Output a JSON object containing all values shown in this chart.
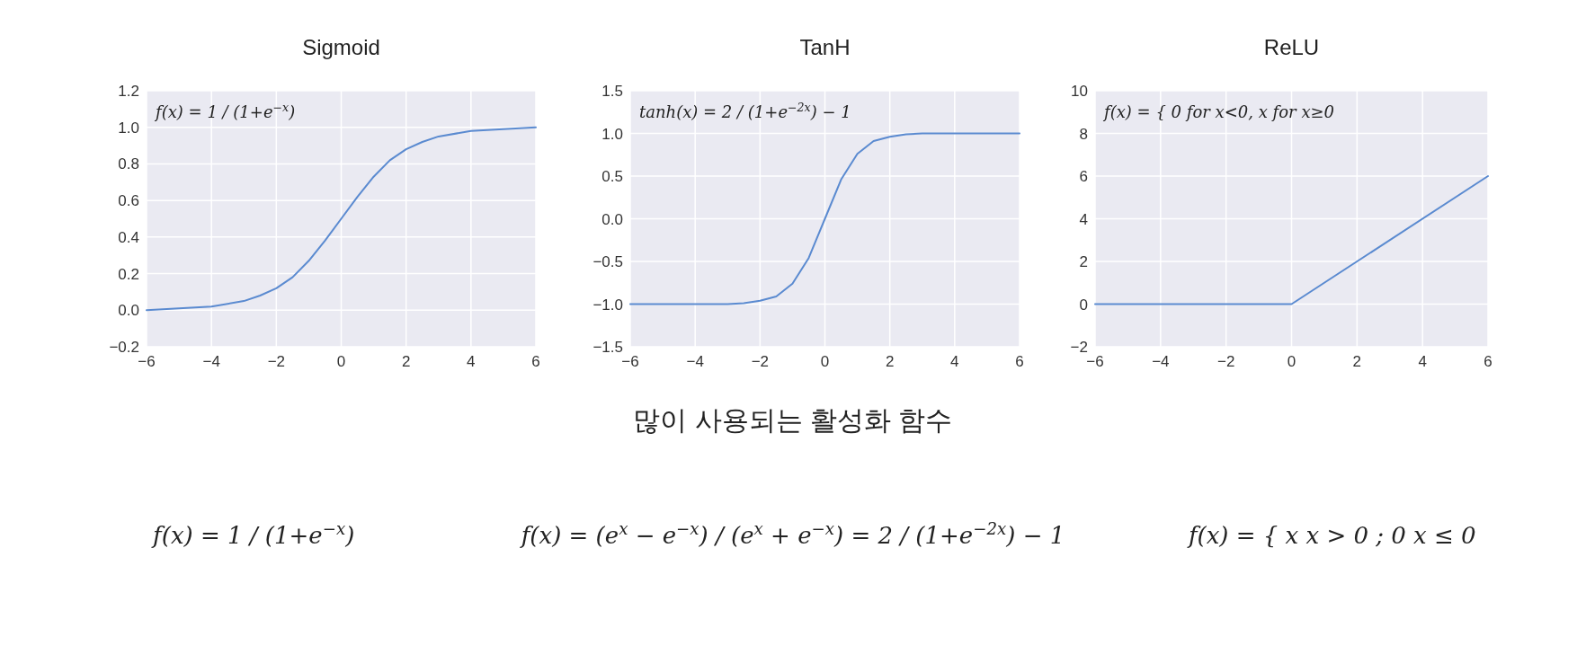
{
  "chart_data": [
    {
      "type": "line",
      "title": "Sigmoid",
      "grid": true,
      "xlim": [
        -6,
        6
      ],
      "ylim": [
        -0.2,
        1.2
      ],
      "xticks": [
        {
          "value": -6,
          "label": "−6"
        },
        {
          "value": -4,
          "label": "−4"
        },
        {
          "value": -2,
          "label": "−2"
        },
        0,
        2,
        4,
        6
      ],
      "yticks": [
        {
          "value": -0.2,
          "label": "−0.2"
        },
        {
          "value": 0,
          "label": "0.0"
        },
        {
          "value": 0.2,
          "label": "0.2"
        },
        {
          "value": 0.4,
          "label": "0.4"
        },
        {
          "value": 0.6,
          "label": "0.6"
        },
        {
          "value": 0.8,
          "label": "0.8"
        },
        {
          "value": 1,
          "label": "1.0"
        },
        {
          "value": 1.2,
          "label": "1.2"
        }
      ],
      "x": [
        -6,
        -5,
        -4,
        -3,
        -2.5,
        -2,
        -1.5,
        -1,
        -0.5,
        0,
        0.5,
        1,
        1.5,
        2,
        2.5,
        3,
        4,
        5,
        6
      ],
      "series": [
        {
          "color": "#5a8ad0",
          "values": [
            0.0,
            0.01,
            0.02,
            0.05,
            0.08,
            0.12,
            0.18,
            0.27,
            0.38,
            0.5,
            0.62,
            0.73,
            0.82,
            0.88,
            0.92,
            0.95,
            0.98,
            0.99,
            1.0
          ]
        }
      ],
      "annotations": [
        "f(x) = 1 / (1+e$^{−x}$)"
      ]
    },
    {
      "type": "line",
      "title": "TanH",
      "grid": true,
      "xlim": [
        -6,
        6
      ],
      "ylim": [
        -1.5,
        1.5
      ],
      "xticks": [
        {
          "value": -6,
          "label": "−6"
        },
        {
          "value": -4,
          "label": "−4"
        },
        {
          "value": -2,
          "label": "−2"
        },
        0,
        2,
        4,
        6
      ],
      "yticks": [
        {
          "value": -1.5,
          "label": "−1.5"
        },
        {
          "value": -1,
          "label": "−1.0"
        },
        {
          "value": -0.5,
          "label": "−0.5"
        },
        {
          "value": 0,
          "label": "0.0"
        },
        {
          "value": 0.5,
          "label": "0.5"
        },
        {
          "value": 1,
          "label": "1.0"
        },
        {
          "value": 1.5,
          "label": "1.5"
        }
      ],
      "x": [
        -6,
        -3,
        -2.5,
        -2,
        -1.5,
        -1,
        -0.5,
        0,
        0.5,
        1,
        1.5,
        2,
        2.5,
        3,
        6
      ],
      "series": [
        {
          "color": "#5a8ad0",
          "values": [
            -1,
            -1,
            -0.99,
            -0.96,
            -0.91,
            -0.76,
            -0.46,
            0,
            0.46,
            0.76,
            0.91,
            0.96,
            0.99,
            1,
            1
          ]
        }
      ],
      "annotations": [
        "tanh(x) = 2 / (1+e$^{−2x}$) − 1"
      ]
    },
    {
      "type": "line",
      "title": "ReLU",
      "grid": true,
      "xlim": [
        -6,
        6
      ],
      "ylim": [
        -2,
        10
      ],
      "xticks": [
        {
          "value": -6,
          "label": "−6"
        },
        {
          "value": -4,
          "label": "−4"
        },
        {
          "value": -2,
          "label": "−2"
        },
        0,
        2,
        4,
        6
      ],
      "yticks": [
        {
          "value": -2,
          "label": "−2"
        },
        0,
        2,
        4,
        6,
        8,
        10
      ],
      "x": [
        -6,
        0,
        6
      ],
      "series": [
        {
          "color": "#5a8ad0",
          "values": [
            0,
            0,
            6
          ]
        }
      ],
      "annotations": [
        "f(x) = { 0 for x<0, x for x≥0"
      ]
    },
    {
      "type": "other",
      "title": "많이 사용되는 활성화 함수",
      "annotations": [
        "f(x) = 1 / (1+e$^{−x}$)",
        "f(x) = (e$^{x}$ − e$^{−x}$) / (e$^{x}$ + e$^{−x}$) = 2 / (1+e$^{−2x}$) − 1",
        "f(x) = { x  x > 0 ;  0  x ≤ 0"
      ]
    }
  ]
}
